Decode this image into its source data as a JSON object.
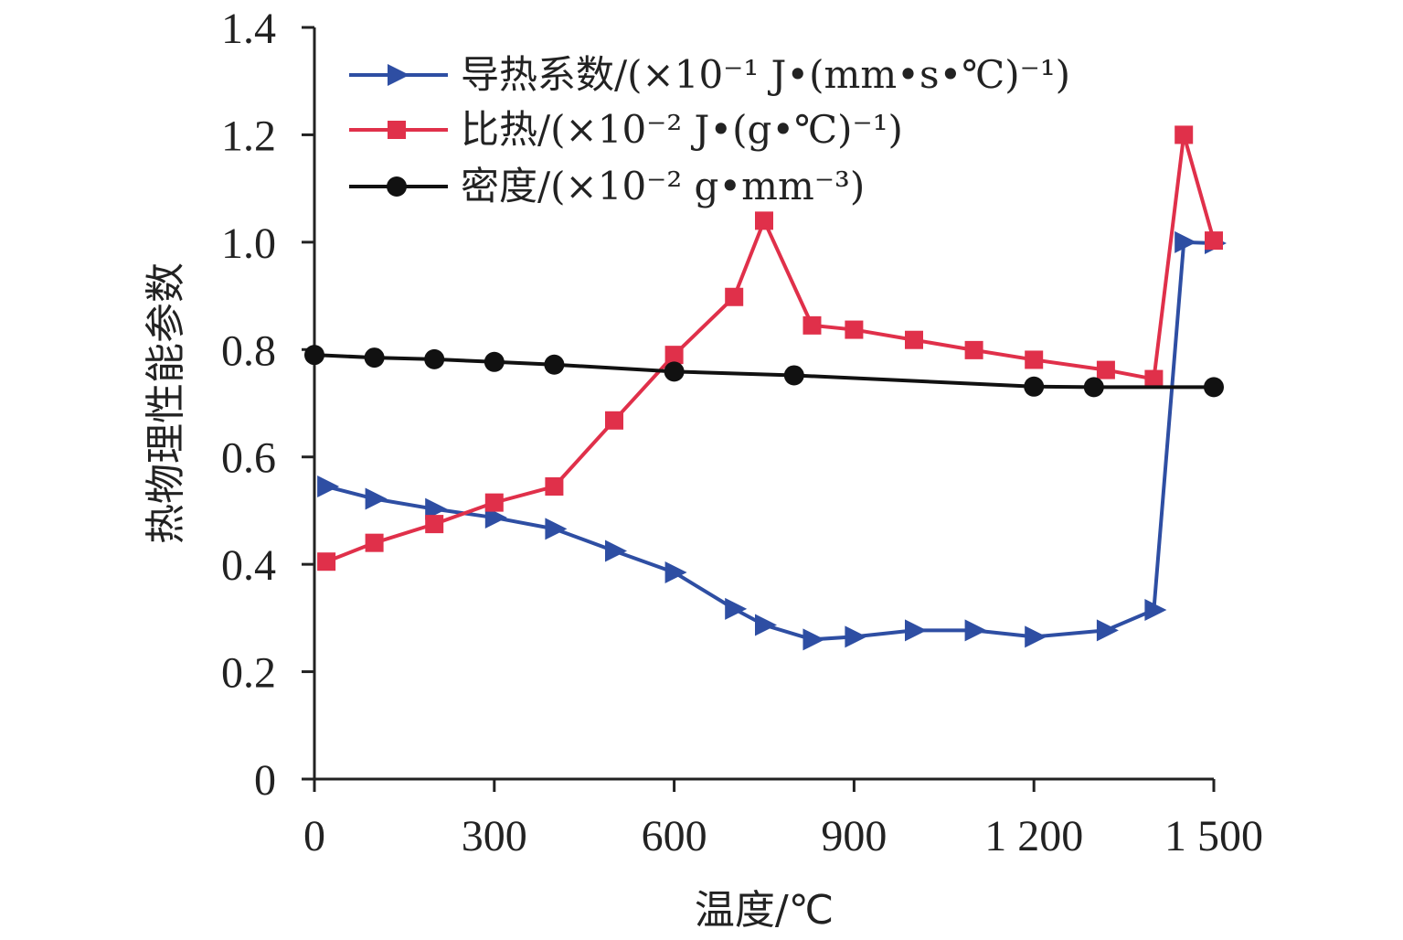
{
  "chart_data": {
    "type": "line",
    "xlabel": "温度/℃",
    "ylabel": "热物理性能参数",
    "xlim": [
      0,
      1500
    ],
    "ylim": [
      0,
      1.4
    ],
    "x_ticks": [
      0,
      300,
      600,
      900,
      1200,
      1500
    ],
    "x_tick_labels": [
      "0",
      "300",
      "600",
      "900",
      "1 200",
      "1 500"
    ],
    "y_ticks": [
      0,
      0.2,
      0.4,
      0.6,
      0.8,
      1.0,
      1.2,
      1.4
    ],
    "y_tick_labels": [
      "0",
      "0.2",
      "0.4",
      "0.6",
      "0.8",
      "1.0",
      "1.2",
      "1.4"
    ],
    "grid": false,
    "legend_position": "top-left",
    "series": [
      {
        "name": "导热系数/(×10⁻¹ J•(mm•s•℃)⁻¹)",
        "color": "#2e4ea3",
        "marker": "triangle-right",
        "x": [
          20,
          100,
          200,
          300,
          400,
          500,
          600,
          700,
          750,
          830,
          900,
          1000,
          1100,
          1200,
          1320,
          1400,
          1450,
          1500
        ],
        "y": [
          0.545,
          0.522,
          0.503,
          0.487,
          0.466,
          0.425,
          0.385,
          0.317,
          0.287,
          0.26,
          0.265,
          0.277,
          0.277,
          0.265,
          0.277,
          0.315,
          1.0,
          0.998
        ]
      },
      {
        "name": "比热/(×10⁻² J•(g•℃)⁻¹)",
        "color": "#e0304a",
        "marker": "square",
        "x": [
          20,
          100,
          200,
          300,
          400,
          500,
          600,
          700,
          750,
          830,
          900,
          1000,
          1100,
          1200,
          1320,
          1400,
          1450,
          1500
        ],
        "y": [
          0.405,
          0.44,
          0.475,
          0.515,
          0.545,
          0.668,
          0.79,
          0.898,
          1.04,
          0.845,
          0.837,
          0.818,
          0.799,
          0.781,
          0.762,
          0.745,
          1.2,
          1.003
        ]
      },
      {
        "name": "密度/(×10⁻² g•mm⁻³)",
        "color": "#111111",
        "marker": "circle",
        "x": [
          0,
          100,
          200,
          300,
          400,
          600,
          800,
          1200,
          1300,
          1500
        ],
        "y": [
          0.79,
          0.785,
          0.782,
          0.777,
          0.772,
          0.759,
          0.752,
          0.731,
          0.73,
          0.73
        ]
      }
    ]
  }
}
